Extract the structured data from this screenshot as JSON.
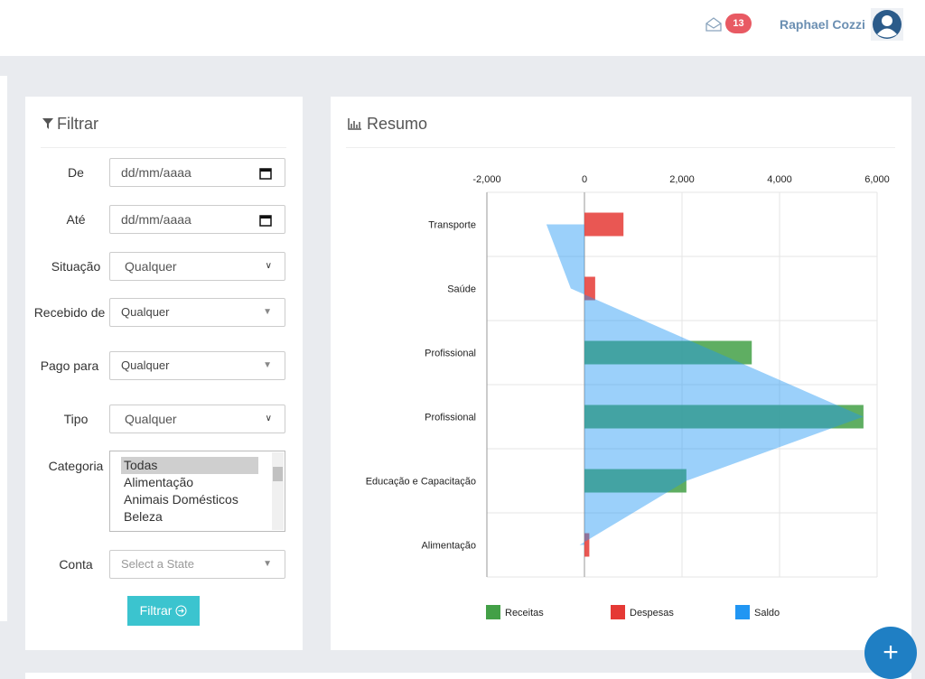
{
  "header": {
    "notification_count": 13,
    "user_name": "Raphael Cozzi"
  },
  "filter": {
    "title": "Filtrar",
    "fields": [
      {
        "label": "De",
        "value": "dd/mm/aaaa"
      },
      {
        "label": "Até",
        "value": "dd/mm/aaaa"
      },
      {
        "label": "Situação",
        "value": "Qualquer"
      },
      {
        "label": "Recebido de",
        "value": "Qualquer"
      },
      {
        "label": "Pago para",
        "value": "Qualquer"
      },
      {
        "label": "Tipo",
        "value": "Qualquer"
      },
      {
        "label": "Categoria",
        "options": [
          "Todas",
          "Alimentação",
          "Animais Domésticos",
          "Beleza"
        ]
      },
      {
        "label": "Conta",
        "value": "Select a State"
      }
    ],
    "button": "Filtrar"
  },
  "chart_data": {
    "type": "bar",
    "orientation": "horizontal",
    "title": "Resumo",
    "categories": [
      "Transporte",
      "Saúde",
      "Profissional",
      "Profissional",
      "Educação e Capacitação",
      "Alimentação"
    ],
    "series": [
      {
        "name": "Receitas",
        "color": "#43a047",
        "values": [
          0,
          0,
          3430,
          5720,
          2090,
          0
        ]
      },
      {
        "name": "Despesas",
        "color": "#e53935",
        "values": [
          800,
          220,
          0,
          0,
          0,
          100
        ]
      },
      {
        "name": "Saldo",
        "color": "#2196f3",
        "type": "area",
        "values": [
          -780,
          -280,
          2720,
          5720,
          2090,
          -100
        ]
      }
    ],
    "xlim": [
      -2000,
      6000
    ],
    "xticks": [
      {
        "value": -2000,
        "label": "-2,000"
      },
      0,
      {
        "value": 2000,
        "label": "2,000"
      },
      {
        "value": 4000,
        "label": "4,000"
      },
      {
        "value": 6000,
        "label": "6,000"
      }
    ],
    "grid": true,
    "legend": "bottom"
  }
}
